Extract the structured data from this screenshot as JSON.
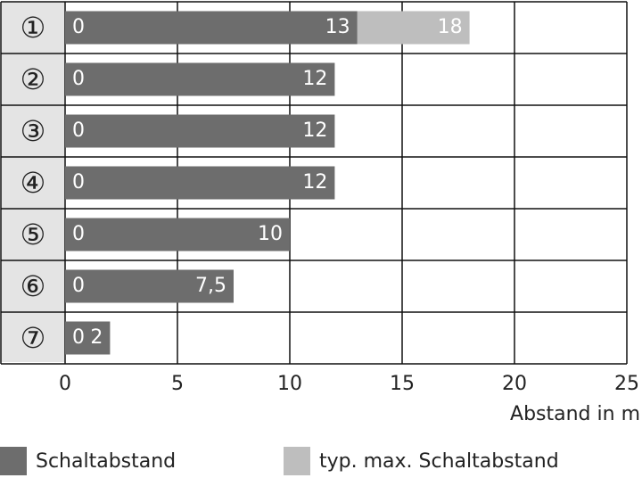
{
  "chart_data": {
    "type": "bar",
    "orientation": "horizontal",
    "categories": [
      "①",
      "②",
      "③",
      "④",
      "⑤",
      "⑥",
      "⑦"
    ],
    "series": [
      {
        "name": "Schaltabstand",
        "color": "#6d6d6d",
        "starts": [
          0,
          0,
          0,
          0,
          0,
          0,
          0
        ],
        "values": [
          13,
          12,
          12,
          12,
          10,
          7.5,
          2
        ],
        "value_labels": [
          "13",
          "12",
          "12",
          "12",
          "10",
          "7,5",
          "2"
        ]
      },
      {
        "name": "typ. max. Schaltabstand",
        "color": "#bebebe",
        "values": [
          18,
          null,
          null,
          null,
          null,
          null,
          null
        ]
      }
    ],
    "xlabel": "Abstand in m",
    "xlim": [
      0,
      25
    ],
    "xticks": [
      0,
      5,
      10,
      15,
      20,
      25
    ],
    "grid": true,
    "legend": "bottom"
  }
}
